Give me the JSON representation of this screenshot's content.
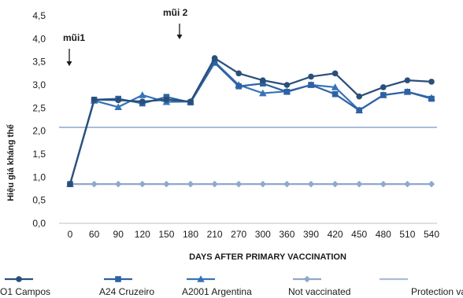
{
  "chart_data": {
    "type": "line",
    "title": "",
    "xlabel": "DAYS AFTER PRIMARY VACCINATION",
    "ylabel": "Hiệu giá kháng thể",
    "categories": [
      "0",
      "60",
      "90",
      "120",
      "150",
      "180",
      "210",
      "270",
      "300",
      "360",
      "390",
      "420",
      "450",
      "480",
      "510",
      "540"
    ],
    "ylim": [
      0,
      4.5
    ],
    "yticks": [
      "0,0",
      "0,5",
      "1,0",
      "1,5",
      "2,0",
      "2,5",
      "3,0",
      "3,5",
      "4,0",
      "4,5"
    ],
    "grid": false,
    "legend_position": "bottom",
    "series": [
      {
        "name": "O1 Campos",
        "marker": "circle",
        "color": "#2a4f7a",
        "values": [
          0.85,
          2.68,
          2.67,
          2.64,
          2.68,
          2.64,
          3.58,
          3.25,
          3.1,
          3.0,
          3.18,
          3.25,
          2.75,
          2.95,
          3.1,
          3.07
        ]
      },
      {
        "name": "A24 Cruzeiro",
        "marker": "square",
        "color": "#2e62a3",
        "values": [
          0.85,
          2.68,
          2.7,
          2.6,
          2.74,
          2.62,
          3.48,
          2.97,
          3.03,
          2.85,
          3.0,
          2.8,
          2.45,
          2.78,
          2.85,
          2.7
        ]
      },
      {
        "name": "A2001 Argentina",
        "marker": "triangle",
        "color": "#3573b8",
        "values": [
          0.85,
          2.66,
          2.52,
          2.78,
          2.63,
          2.64,
          3.5,
          3.0,
          2.82,
          2.86,
          3.0,
          2.95,
          2.45,
          2.78,
          2.85,
          2.72
        ]
      },
      {
        "name": "Not vaccinated",
        "marker": "diamond",
        "color": "#8fa8cc",
        "values": [
          0.85,
          0.85,
          0.85,
          0.85,
          0.85,
          0.85,
          0.85,
          0.85,
          0.85,
          0.85,
          0.85,
          0.85,
          0.85,
          0.85,
          0.85,
          0.85
        ]
      },
      {
        "name": "Protection value",
        "marker": "none",
        "color": "#a9bcd9",
        "values": [
          2.08,
          2.08,
          2.08,
          2.08,
          2.08,
          2.08,
          2.08,
          2.08,
          2.08,
          2.08,
          2.08,
          2.08,
          2.08,
          2.08,
          2.08,
          2.08
        ]
      }
    ],
    "annotations": [
      {
        "text": "mũi1",
        "x": "0"
      },
      {
        "text": "mũi 2",
        "x": "180"
      }
    ]
  }
}
